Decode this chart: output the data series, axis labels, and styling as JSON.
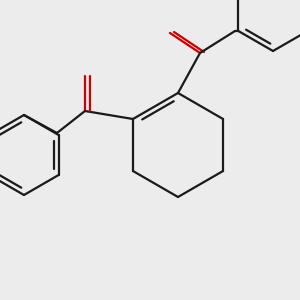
{
  "background_color": "#ececec",
  "bond_color": "#1a1a1a",
  "oxygen_color": "#cc0000",
  "line_width": 1.6,
  "figsize": [
    3.0,
    3.0
  ],
  "dpi": 100,
  "xlim": [
    0,
    300
  ],
  "ylim": [
    0,
    300
  ]
}
